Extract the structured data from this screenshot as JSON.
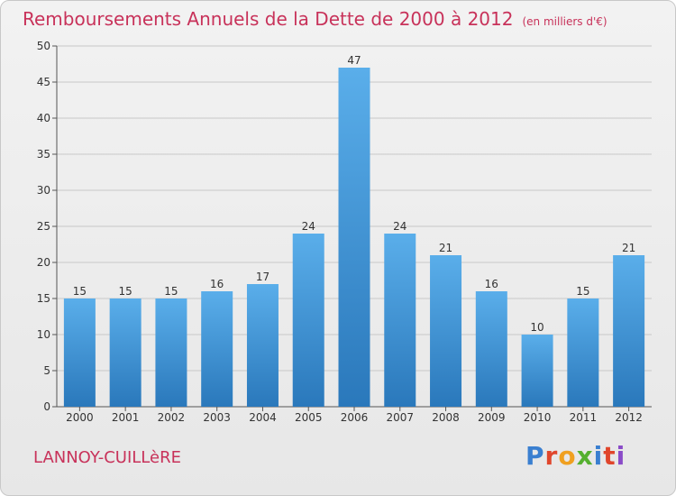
{
  "title": "Remboursements Annuels de la Dette de 2000 à 2012",
  "unit_note": "(en milliers d'€)",
  "place": "LANNOY-CUILLèRE",
  "logo_text": "Proxiti",
  "colors": {
    "title": "#c8325a",
    "bar_top": "#5aaeea",
    "bar_bottom": "#2a78bb",
    "grid": "#c8c8c8"
  },
  "chart_data": {
    "type": "bar",
    "title": "Remboursements Annuels de la Dette de 2000 à 2012",
    "xlabel": "",
    "ylabel": "",
    "categories": [
      "2000",
      "2001",
      "2002",
      "2003",
      "2004",
      "2005",
      "2006",
      "2007",
      "2008",
      "2009",
      "2010",
      "2011",
      "2012"
    ],
    "values": [
      15,
      15,
      15,
      16,
      17,
      24,
      47,
      24,
      21,
      16,
      10,
      15,
      21
    ],
    "ylim": [
      0,
      50
    ],
    "yticks": [
      0,
      5,
      10,
      15,
      20,
      25,
      30,
      35,
      40,
      45,
      50
    ],
    "grid": true,
    "legend": "none"
  }
}
